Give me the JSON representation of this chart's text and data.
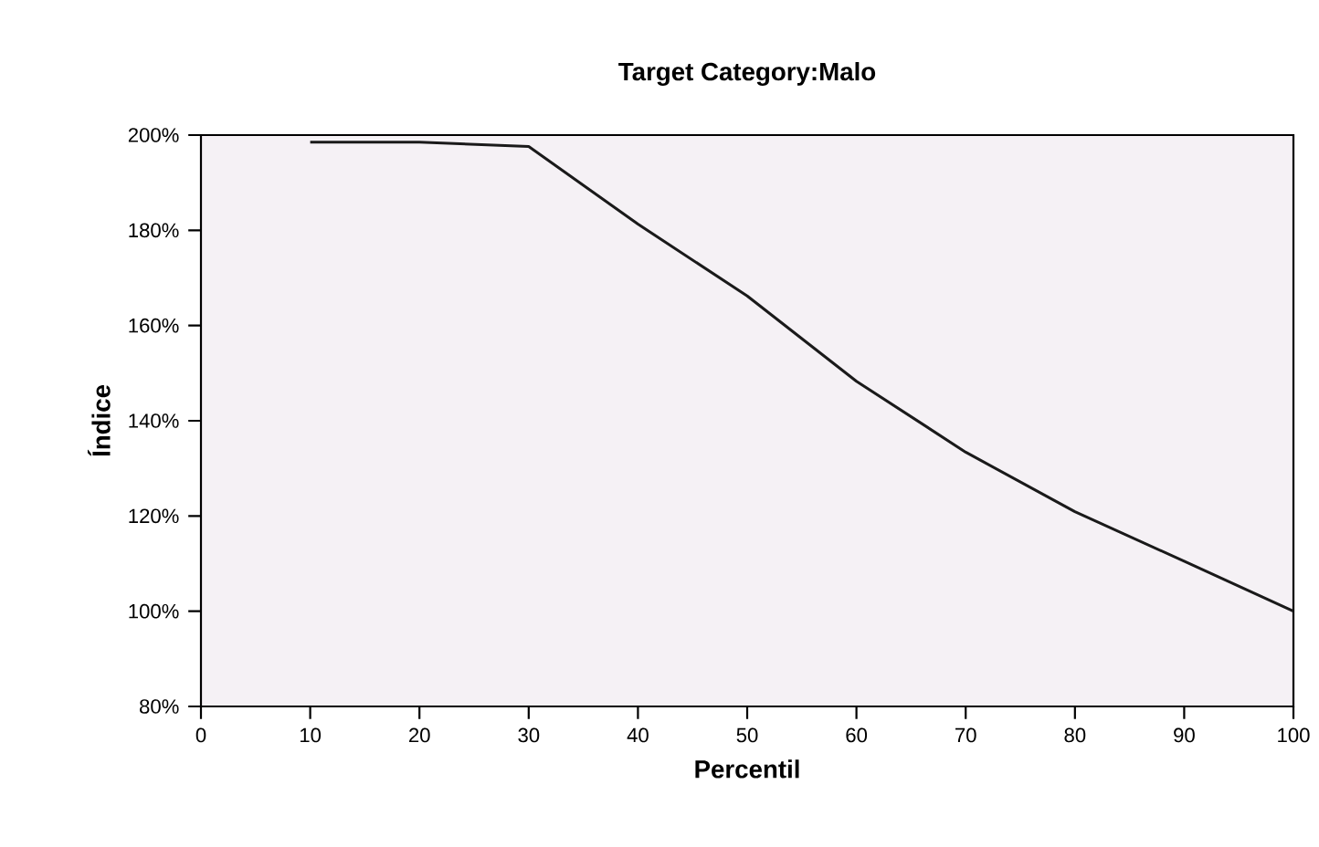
{
  "chart_data": {
    "type": "line",
    "title": "Target Category:Malo",
    "xlabel": "Percentil",
    "ylabel": "Índice",
    "x": [
      10,
      20,
      30,
      40,
      50,
      60,
      70,
      80,
      90,
      100
    ],
    "series": [
      {
        "color": "#1a1a1a",
        "values": [
          198.5,
          198.5,
          197.6,
          181.3,
          166.2,
          148.3,
          133.4,
          120.9,
          110.5,
          100
        ]
      }
    ],
    "xlim": [
      0,
      100
    ],
    "xticks": [
      0,
      10,
      20,
      30,
      40,
      50,
      60,
      70,
      80,
      90,
      100
    ],
    "ylim": [
      80,
      200
    ],
    "yticks": [
      {
        "value": 80,
        "label": "80%"
      },
      {
        "value": 100,
        "label": "100%"
      },
      {
        "value": 120,
        "label": "120%"
      },
      {
        "value": 140,
        "label": "140%"
      },
      {
        "value": 160,
        "label": "160%"
      },
      {
        "value": 180,
        "label": "180%"
      },
      {
        "value": 200,
        "label": "200%"
      }
    ],
    "grid": false,
    "marker": "none",
    "line_style": "solid"
  }
}
